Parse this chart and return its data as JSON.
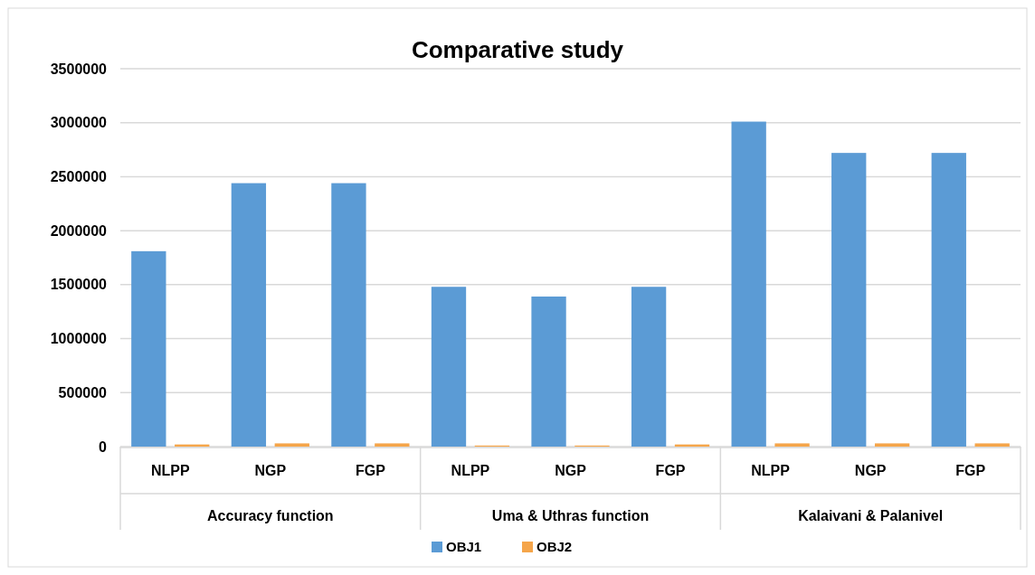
{
  "chart_data": {
    "type": "bar",
    "title": "Comparative study",
    "categories": [
      "NLPP",
      "NGP",
      "FGP",
      "NLPP",
      "NGP",
      "FGP",
      "NLPP",
      "NGP",
      "FGP"
    ],
    "annotations": [
      "Accuracy function",
      "Uma & Uthras function",
      "Kalaivani & Palanivel"
    ],
    "series": [
      {
        "name": "OBJ1",
        "color": "#5b9bd5",
        "values": [
          1810000,
          2440000,
          2440000,
          1480000,
          1390000,
          1480000,
          3010000,
          2720000,
          2720000
        ]
      },
      {
        "name": "OBJ2",
        "color": "#f5a54a",
        "values": [
          20000,
          30000,
          30000,
          10000,
          10000,
          20000,
          30000,
          30000,
          30000
        ]
      }
    ],
    "ylim": [
      0,
      3500000
    ],
    "yticks": [
      0,
      500000,
      1000000,
      1500000,
      2000000,
      2500000,
      3000000,
      3500000
    ],
    "grid": "y",
    "legend": "bottom"
  }
}
